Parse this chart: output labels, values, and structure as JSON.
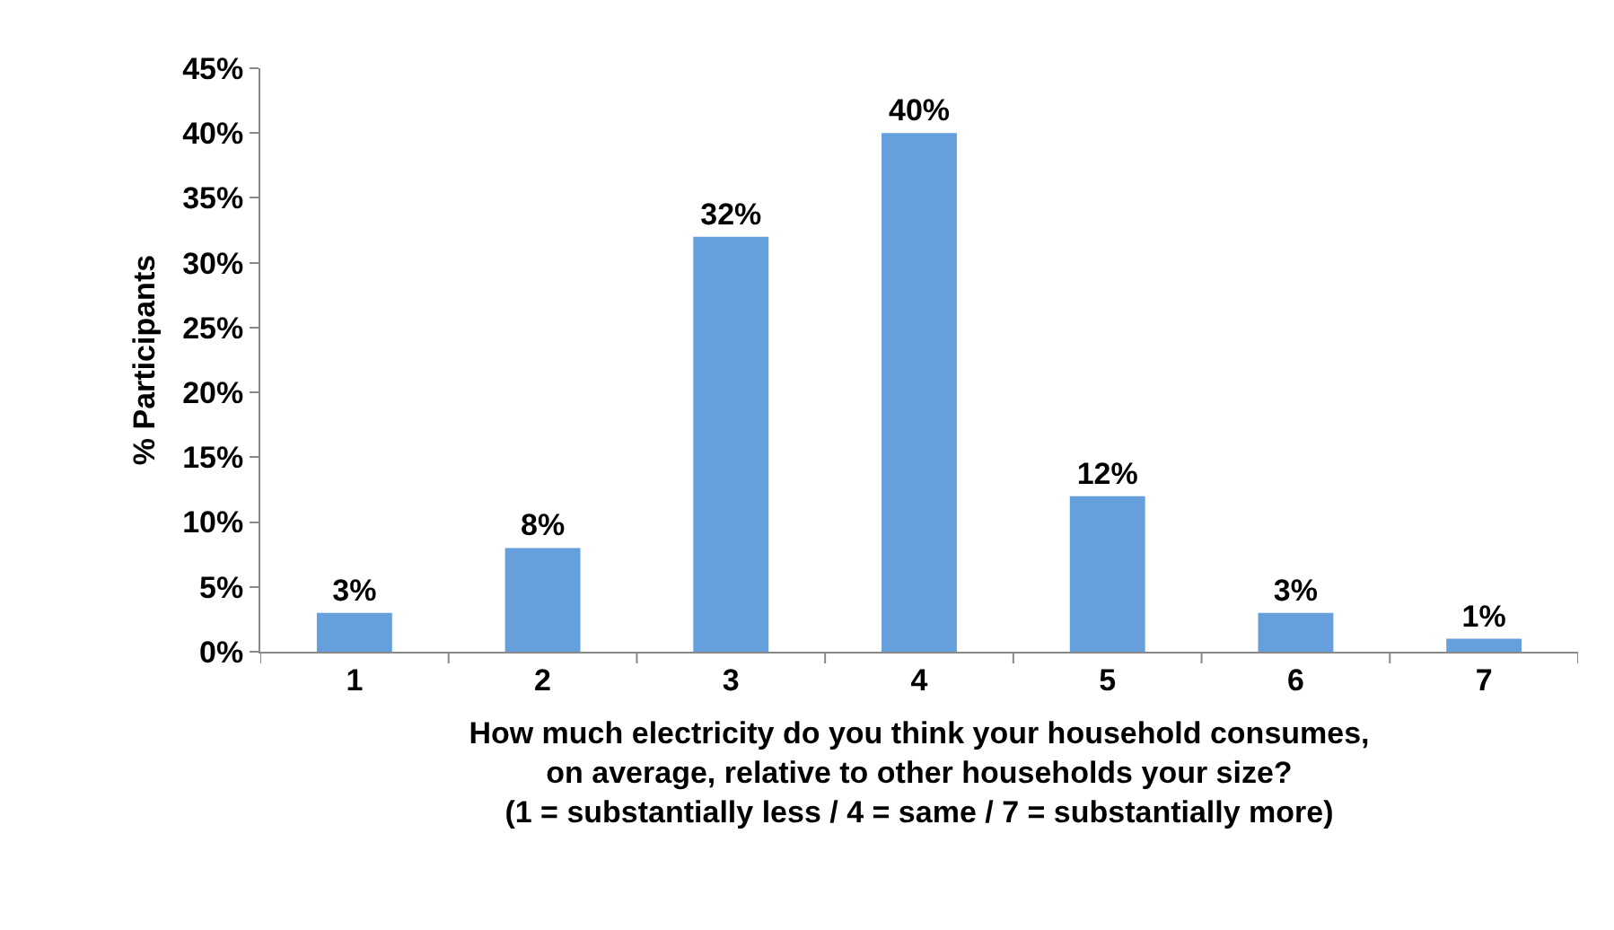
{
  "chart_data": {
    "type": "bar",
    "categories": [
      "1",
      "2",
      "3",
      "4",
      "5",
      "6",
      "7"
    ],
    "values": [
      3,
      8,
      32,
      40,
      12,
      3,
      1
    ],
    "color": "#659fdc",
    "data_labels": true,
    "value_labels": [
      "3%",
      "8%",
      "32%",
      "40%",
      "12%",
      "3%",
      "1%"
    ],
    "ylabel": "% Participants",
    "xlabel": "How much electricity do you think your household consumes,\non average, relative to other households your size?\n(1 = substantially less / 4 = same / 7 = substantially more)",
    "ylim": [
      0,
      45
    ],
    "yticks": [
      {
        "value": 0,
        "label": "0%"
      },
      {
        "value": 5,
        "label": "5%"
      },
      {
        "value": 10,
        "label": "10%"
      },
      {
        "value": 15,
        "label": "15%"
      },
      {
        "value": 20,
        "label": "20%"
      },
      {
        "value": 25,
        "label": "25%"
      },
      {
        "value": 30,
        "label": "30%"
      },
      {
        "value": 35,
        "label": "35%"
      },
      {
        "value": 40,
        "label": "40%"
      },
      {
        "value": 45,
        "label": "45%"
      }
    ],
    "legend": false
  }
}
